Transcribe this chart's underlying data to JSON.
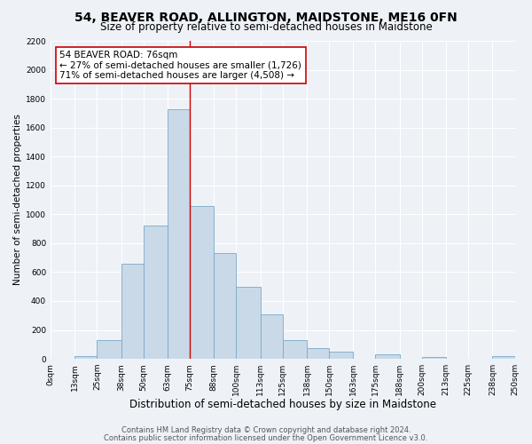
{
  "title1": "54, BEAVER ROAD, ALLINGTON, MAIDSTONE, ME16 0FN",
  "title2": "Size of property relative to semi-detached houses in Maidstone",
  "xlabel": "Distribution of semi-detached houses by size in Maidstone",
  "ylabel": "Number of semi-detached properties",
  "bar_color": "#c9d9e8",
  "bar_edge_color": "#7aaac8",
  "bar_left_edges": [
    0,
    13,
    25,
    38,
    50,
    63,
    75,
    88,
    100,
    113,
    125,
    138,
    150,
    163,
    175,
    188,
    200,
    213,
    225,
    238
  ],
  "bar_widths": [
    13,
    12,
    13,
    12,
    13,
    12,
    13,
    12,
    13,
    12,
    13,
    12,
    13,
    12,
    13,
    12,
    13,
    12,
    13,
    12
  ],
  "bar_heights": [
    0,
    20,
    130,
    660,
    920,
    1730,
    1060,
    730,
    500,
    310,
    130,
    75,
    50,
    0,
    30,
    0,
    15,
    0,
    0,
    20
  ],
  "tick_labels": [
    "0sqm",
    "13sqm",
    "25sqm",
    "38sqm",
    "50sqm",
    "63sqm",
    "75sqm",
    "88sqm",
    "100sqm",
    "113sqm",
    "125sqm",
    "138sqm",
    "150sqm",
    "163sqm",
    "175sqm",
    "188sqm",
    "200sqm",
    "213sqm",
    "225sqm",
    "238sqm",
    "250sqm"
  ],
  "tick_positions": [
    0,
    13,
    25,
    38,
    50,
    63,
    75,
    88,
    100,
    113,
    125,
    138,
    150,
    163,
    175,
    188,
    200,
    213,
    225,
    238,
    250
  ],
  "vline_x": 75,
  "vline_color": "#cc0000",
  "ylim": [
    0,
    2200
  ],
  "yticks": [
    0,
    200,
    400,
    600,
    800,
    1000,
    1200,
    1400,
    1600,
    1800,
    2000,
    2200
  ],
  "annotation_title": "54 BEAVER ROAD: 76sqm",
  "annotation_line1": "← 27% of semi-detached houses are smaller (1,726)",
  "annotation_line2": "71% of semi-detached houses are larger (4,508) →",
  "annotation_box_color": "#ffffff",
  "annotation_box_edge": "#cc0000",
  "footer1": "Contains HM Land Registry data © Crown copyright and database right 2024.",
  "footer2": "Contains public sector information licensed under the Open Government Licence v3.0.",
  "bg_color": "#eef2f7",
  "grid_color": "#ffffff",
  "title1_fontsize": 10,
  "title2_fontsize": 8.5,
  "xlabel_fontsize": 8.5,
  "ylabel_fontsize": 7.5,
  "tick_fontsize": 6.5,
  "footer_fontsize": 6,
  "annotation_fontsize": 7.5
}
